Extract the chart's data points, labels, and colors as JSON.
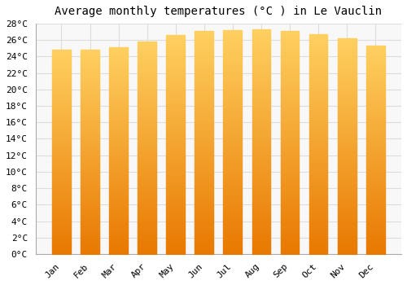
{
  "title": "Average monthly temperatures (°C ) in Le Vauclin",
  "months": [
    "Jan",
    "Feb",
    "Mar",
    "Apr",
    "May",
    "Jun",
    "Jul",
    "Aug",
    "Sep",
    "Oct",
    "Nov",
    "Dec"
  ],
  "values": [
    24.8,
    24.8,
    25.1,
    25.8,
    26.6,
    27.1,
    27.2,
    27.3,
    27.1,
    26.7,
    26.2,
    25.3
  ],
  "bar_color_bottom": "#E87800",
  "bar_color_top": "#FFD060",
  "ylim": [
    0,
    28
  ],
  "yticks": [
    0,
    2,
    4,
    6,
    8,
    10,
    12,
    14,
    16,
    18,
    20,
    22,
    24,
    26,
    28
  ],
  "background_color": "#FFFFFF",
  "plot_bg_color": "#F8F8F8",
  "grid_color": "#DDDDDD",
  "title_fontsize": 10,
  "tick_fontsize": 8,
  "bar_width": 0.65
}
